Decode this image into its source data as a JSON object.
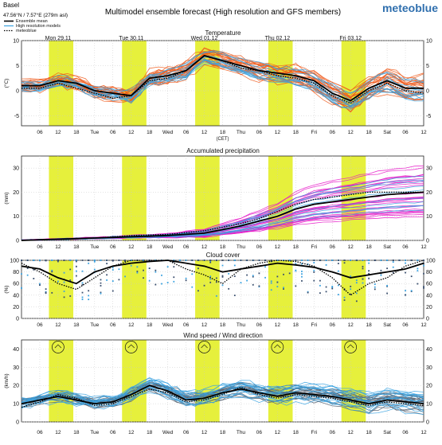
{
  "header": {
    "location": "Basel",
    "coords": "47.56°N / 7.57°E (279m asl)",
    "title": "Multimodel ensemble forecast (High resolution and GFS members)",
    "brand": "meteoblue"
  },
  "colors": {
    "day_band": "#e6f03c",
    "ensemble_mean": "#000000",
    "high_res": "#3aa2e0",
    "gfs_temperature": "#ef5a1c",
    "gfs_precip": "#e616c8",
    "gfs_wind": "#556070",
    "gfs_cloud": "#3a4f6e",
    "grid": "#c8c8c8"
  },
  "days": [
    {
      "label": "Mon 29.11",
      "weekday": ""
    },
    {
      "label": "Tue 30.11",
      "weekday": "Tue"
    },
    {
      "label": "Wed 01.12",
      "weekday": "Wed"
    },
    {
      "label": "Thu 02.12",
      "weekday": "Thu"
    },
    {
      "label": "Fri 03.12",
      "weekday": "Fri"
    },
    {
      "label": "",
      "weekday": "Sat"
    }
  ],
  "hour_ticks": [
    "06",
    "12",
    "18"
  ],
  "timezone_note": "(CET)",
  "legend": [
    {
      "label": "Ensemble mean",
      "style": "solid-black"
    },
    {
      "label": "High resolution models",
      "style": "blue"
    },
    {
      "label": "meteoblue",
      "style": "dotted-black"
    }
  ],
  "chart_data": [
    {
      "type": "line",
      "title": "Temperature",
      "ylabel": "(°C)",
      "ylim": [
        -7,
        10
      ],
      "yticks": [
        10,
        5,
        0,
        -5
      ],
      "grid": true,
      "x_unit": "hours since Mon 29.11 00:00 (CET)",
      "x": [
        0,
        6,
        12,
        18,
        24,
        30,
        36,
        42,
        48,
        54,
        60,
        66,
        72,
        78,
        84,
        90,
        96,
        102,
        108,
        114,
        120,
        126,
        132
      ],
      "series": [
        {
          "name": "Ensemble mean",
          "values": [
            1,
            1,
            2,
            1.5,
            0,
            -0.5,
            -1,
            2.5,
            3,
            4,
            7,
            6,
            5,
            4,
            3.5,
            3,
            2,
            -0.5,
            -2,
            0.5,
            2,
            0.5,
            0.5
          ]
        },
        {
          "name": "meteoblue",
          "values": [
            0.5,
            0.5,
            1.5,
            0.5,
            -0.5,
            -1.5,
            -1,
            2,
            2.5,
            4,
            7,
            6,
            4.5,
            4,
            3,
            2.5,
            1.5,
            -1,
            -2.5,
            0,
            1.5,
            0,
            -0.5
          ]
        }
      ]
    },
    {
      "type": "line",
      "title": "Accumulated precipitation",
      "ylabel": "(mm)",
      "ylim": [
        0,
        35
      ],
      "yticks": [
        30,
        20,
        10,
        0
      ],
      "grid": true,
      "x_unit": "hours since Mon 29.11 00:00 (CET)",
      "x": [
        0,
        12,
        24,
        36,
        48,
        60,
        72,
        78,
        84,
        90,
        96,
        102,
        108,
        114,
        120,
        132
      ],
      "series": [
        {
          "name": "Ensemble mean",
          "values": [
            0,
            0.5,
            1,
            1.5,
            2,
            3,
            6,
            8,
            10,
            13,
            15,
            16,
            17,
            18,
            19,
            20
          ]
        },
        {
          "name": "meteoblue",
          "values": [
            0,
            0.5,
            1,
            2,
            2.5,
            4,
            7,
            9,
            12,
            15,
            17,
            18,
            19,
            20,
            20,
            20
          ]
        }
      ]
    },
    {
      "type": "line",
      "title": "Cloud cover",
      "ylabel": "(%)",
      "ylim": [
        0,
        100
      ],
      "yticks": [
        100,
        80,
        60,
        40,
        20,
        0
      ],
      "grid": true,
      "x_unit": "hours since Mon 29.11 00:00 (CET)",
      "x": [
        0,
        6,
        12,
        18,
        24,
        30,
        36,
        42,
        48,
        54,
        60,
        66,
        72,
        78,
        84,
        90,
        96,
        102,
        108,
        114,
        120,
        126,
        132
      ],
      "series": [
        {
          "name": "Ensemble mean",
          "values": [
            90,
            85,
            70,
            60,
            80,
            90,
            95,
            98,
            100,
            95,
            90,
            80,
            85,
            90,
            95,
            92,
            88,
            80,
            70,
            75,
            80,
            85,
            95
          ]
        },
        {
          "name": "meteoblue",
          "values": [
            95,
            80,
            60,
            50,
            70,
            90,
            100,
            100,
            100,
            85,
            75,
            60,
            85,
            95,
            100,
            98,
            90,
            70,
            40,
            60,
            70,
            90,
            100
          ]
        }
      ]
    },
    {
      "type": "line",
      "title": "Wind speed / Wind direction",
      "ylabel": "(km/h)",
      "ylim": [
        0,
        45
      ],
      "yticks": [
        40,
        30,
        20,
        10,
        0
      ],
      "grid": true,
      "x_unit": "hours since Mon 29.11 00:00 (CET)",
      "x": [
        0,
        6,
        12,
        18,
        24,
        30,
        36,
        42,
        48,
        54,
        60,
        66,
        72,
        78,
        84,
        90,
        96,
        102,
        108,
        114,
        120,
        126,
        132
      ],
      "series": [
        {
          "name": "Ensemble mean",
          "values": [
            10,
            12,
            14,
            12,
            10,
            11,
            15,
            20,
            17,
            12,
            13,
            16,
            18,
            16,
            14,
            16,
            15,
            14,
            12,
            10,
            12,
            11,
            10
          ]
        },
        {
          "name": "meteoblue",
          "values": [
            8,
            11,
            15,
            13,
            9,
            10,
            14,
            18,
            16,
            11,
            12,
            15,
            19,
            15,
            13,
            15,
            14,
            13,
            11,
            9,
            11,
            10,
            9
          ]
        }
      ]
    }
  ]
}
